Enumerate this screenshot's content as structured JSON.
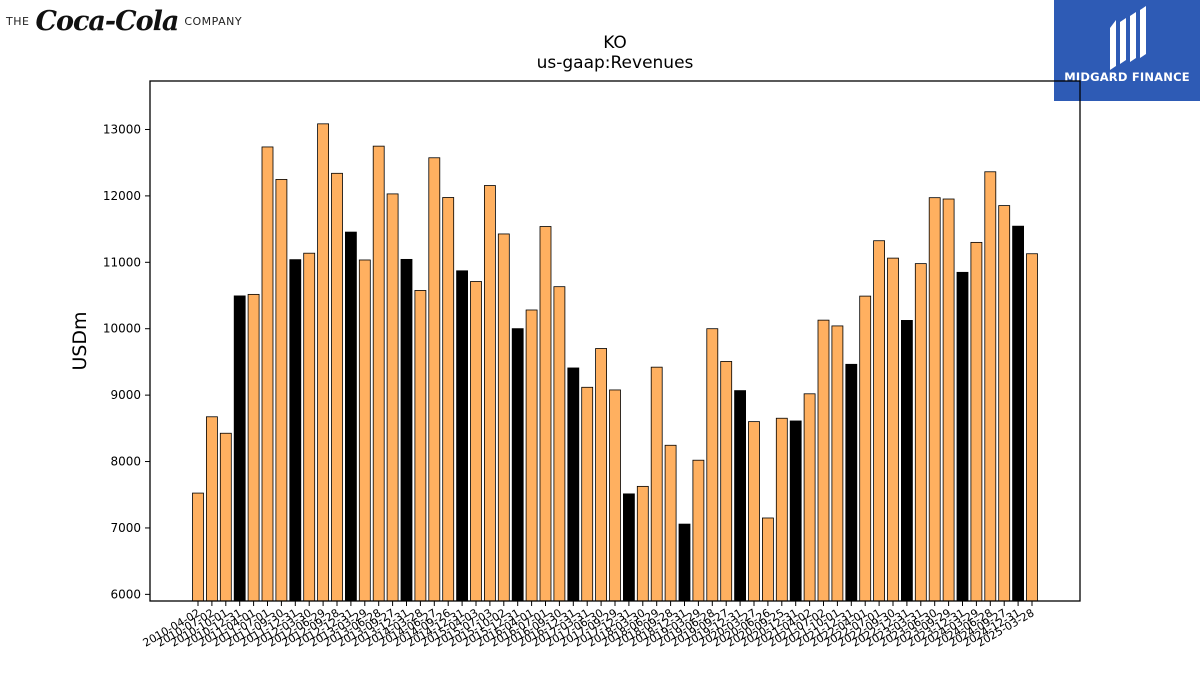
{
  "logos": {
    "left": {
      "pre": "THE",
      "script": "Coca-Cola",
      "post": "COMPANY"
    },
    "right": {
      "name": "MIDGARD FINANCE"
    }
  },
  "colors": {
    "bar_default": "#ffb060",
    "bar_highlight": "#000000",
    "axis": "#000000",
    "logo_bg": "#2e5bb5"
  },
  "chart_data": {
    "type": "bar",
    "title": "KO",
    "subtitle": "us-gaap:Revenues",
    "xlabel": "",
    "ylabel": "USDm",
    "ylim": [
      5900,
      13730
    ],
    "yticks": [
      6000,
      7000,
      8000,
      9000,
      10000,
      11000,
      12000,
      13000
    ],
    "grid": false,
    "categories": [
      "2010-04-02",
      "2010-07-02",
      "2010-10-01",
      "2010-12-31",
      "2011-04-01",
      "2011-07-01",
      "2011-09-30",
      "2011-12-31",
      "2012-03-30",
      "2012-06-29",
      "2012-09-28",
      "2012-12-31",
      "2013-03-29",
      "2013-06-28",
      "2013-09-27",
      "2013-12-31",
      "2014-03-28",
      "2014-06-27",
      "2014-09-26",
      "2014-12-31",
      "2015-04-03",
      "2015-07-03",
      "2015-10-02",
      "2015-12-31",
      "2016-04-01",
      "2016-07-01",
      "2016-09-30",
      "2016-12-31",
      "2017-03-31",
      "2017-06-30",
      "2017-09-29",
      "2017-12-31",
      "2018-03-30",
      "2018-06-29",
      "2018-09-28",
      "2018-12-31",
      "2019-03-29",
      "2019-06-28",
      "2019-09-27",
      "2019-12-31",
      "2020-03-27",
      "2020-06-26",
      "2020-09-25",
      "2020-12-31",
      "2021-04-02",
      "2021-07-02",
      "2021-10-01",
      "2021-12-31",
      "2022-04-01",
      "2022-07-01",
      "2022-09-30",
      "2022-12-31",
      "2023-03-31",
      "2023-06-30",
      "2023-09-29",
      "2023-12-31",
      "2024-03-29",
      "2024-06-28",
      "2024-09-27",
      "2024-12-31",
      "2025-03-28"
    ],
    "values": [
      7525,
      8674,
      8426,
      10494,
      10517,
      12737,
      12248,
      11040,
      11137,
      13085,
      12340,
      11455,
      11035,
      12749,
      12030,
      11044,
      10576,
      12574,
      11976,
      10872,
      10711,
      12156,
      11427,
      10001,
      10282,
      11539,
      10633,
      9409,
      9118,
      9702,
      9078,
      7513,
      7626,
      9421,
      8245,
      7058,
      8020,
      10000,
      9507,
      9068,
      8601,
      7150,
      8652,
      8611,
      9020,
      10129,
      10042,
      9464,
      10491,
      11325,
      11063,
      10125,
      10980,
      11973,
      11953,
      10849,
      11300,
      12363,
      11854,
      11544,
      11129
    ],
    "highlight": [
      false,
      false,
      false,
      true,
      false,
      false,
      false,
      true,
      false,
      false,
      false,
      true,
      false,
      false,
      false,
      true,
      false,
      false,
      false,
      true,
      false,
      false,
      false,
      true,
      false,
      false,
      false,
      true,
      false,
      false,
      false,
      true,
      false,
      false,
      false,
      true,
      false,
      false,
      false,
      true,
      false,
      false,
      false,
      true,
      false,
      false,
      false,
      true,
      false,
      false,
      false,
      true,
      false,
      false,
      false,
      true,
      false,
      false,
      false,
      true,
      false
    ]
  }
}
